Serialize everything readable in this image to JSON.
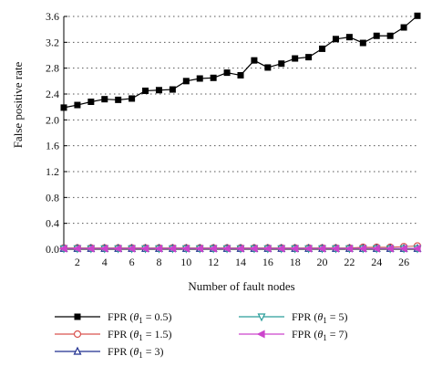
{
  "chart_data": {
    "type": "line",
    "xlabel": "Number of fault nodes",
    "ylabel": "False positive rate",
    "xlim": [
      1,
      27
    ],
    "ylim": [
      0,
      3.6
    ],
    "xticks": [
      2,
      4,
      6,
      8,
      10,
      12,
      14,
      16,
      18,
      20,
      22,
      24,
      26
    ],
    "yticks": [
      0.0,
      0.4,
      0.8,
      1.2,
      1.6,
      2.0,
      2.4,
      2.8,
      3.2,
      3.6
    ],
    "ytick_labels": [
      "0.0",
      "0.4",
      "0.8",
      "1.2",
      "1.6",
      "2.0",
      "2.4",
      "2.8",
      "3.2",
      "3.6"
    ],
    "grid": "horizontal dotted",
    "legend_position": "bottom",
    "x": [
      1,
      2,
      3,
      4,
      5,
      6,
      7,
      8,
      9,
      10,
      11,
      12,
      13,
      14,
      15,
      16,
      17,
      18,
      19,
      20,
      21,
      22,
      23,
      24,
      25,
      26,
      27
    ],
    "series": [
      {
        "name": "FPR (θ1 = 0.5)",
        "name_base": "FPR (",
        "name_theta": "θ",
        "name_sub": "1",
        "name_tail": " = 0.5)",
        "color": "#000000",
        "marker": "square",
        "values": [
          2.19,
          2.23,
          2.28,
          2.32,
          2.31,
          2.33,
          2.45,
          2.46,
          2.47,
          2.6,
          2.64,
          2.65,
          2.73,
          2.69,
          2.92,
          2.81,
          2.87,
          2.95,
          2.97,
          3.1,
          3.25,
          3.28,
          3.19,
          3.3,
          3.3,
          3.43,
          3.61
        ]
      },
      {
        "name": "FPR (θ1 = 1.5)",
        "name_base": "FPR (",
        "name_theta": "θ",
        "name_sub": "1",
        "name_tail": " = 1.5)",
        "color": "#d9534f",
        "marker": "circle",
        "values": [
          0.02,
          0.02,
          0.02,
          0.02,
          0.02,
          0.02,
          0.02,
          0.02,
          0.02,
          0.02,
          0.02,
          0.02,
          0.02,
          0.02,
          0.02,
          0.02,
          0.02,
          0.02,
          0.02,
          0.02,
          0.02,
          0.02,
          0.03,
          0.03,
          0.03,
          0.04,
          0.05
        ]
      },
      {
        "name": "FPR (θ1 = 3)",
        "name_base": "FPR (",
        "name_theta": "θ",
        "name_sub": "1",
        "name_tail": " = 3)",
        "color": "#1f2f8f",
        "marker": "triangle-up",
        "values": [
          0.01,
          0.01,
          0.01,
          0.01,
          0.01,
          0.01,
          0.01,
          0.01,
          0.01,
          0.01,
          0.01,
          0.01,
          0.01,
          0.01,
          0.01,
          0.01,
          0.01,
          0.01,
          0.01,
          0.01,
          0.01,
          0.01,
          0.01,
          0.01,
          0.01,
          0.01,
          0.01
        ]
      },
      {
        "name": "FPR (θ1 = 5)",
        "name_base": "FPR (",
        "name_theta": "θ",
        "name_sub": "1",
        "name_tail": " = 5)",
        "color": "#2a9d9a",
        "marker": "triangle-down",
        "values": [
          0.01,
          0.01,
          0.01,
          0.01,
          0.01,
          0.01,
          0.01,
          0.01,
          0.01,
          0.01,
          0.01,
          0.01,
          0.01,
          0.01,
          0.01,
          0.01,
          0.01,
          0.01,
          0.01,
          0.01,
          0.01,
          0.01,
          0.01,
          0.01,
          0.01,
          0.01,
          0.01
        ]
      },
      {
        "name": "FPR (θ1 = 7)",
        "name_base": "FPR (",
        "name_theta": "θ",
        "name_sub": "1",
        "name_tail": " = 7)",
        "color": "#cc44cc",
        "marker": "triangle-left",
        "values": [
          0.01,
          0.01,
          0.01,
          0.01,
          0.01,
          0.01,
          0.01,
          0.01,
          0.01,
          0.01,
          0.01,
          0.01,
          0.01,
          0.01,
          0.01,
          0.01,
          0.01,
          0.01,
          0.01,
          0.01,
          0.01,
          0.01,
          0.01,
          0.01,
          0.01,
          0.01,
          0.01
        ]
      }
    ]
  }
}
